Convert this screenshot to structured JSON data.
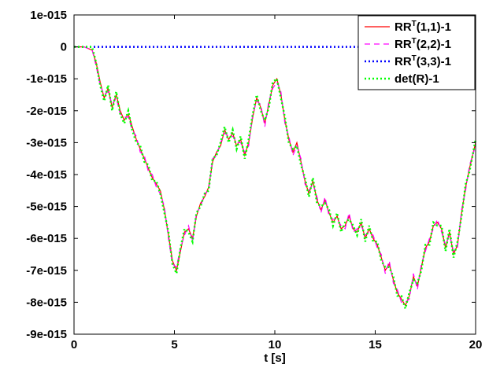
{
  "chart_data": {
    "type": "line",
    "title": "",
    "xlabel": "t [s]",
    "ylabel": "",
    "xlim": [
      0,
      20
    ],
    "ylim": [
      -9e-15,
      1e-15
    ],
    "x_ticks": [
      0,
      5,
      10,
      15,
      20
    ],
    "x_tick_labels": [
      "0",
      "5",
      "10",
      "15",
      "20"
    ],
    "y_ticks": [
      1e-15,
      0,
      -1e-15,
      -2e-15,
      -3e-15,
      -4e-15,
      -5e-15,
      -6e-15,
      -7e-15,
      -8e-15,
      -9e-15
    ],
    "y_tick_labels": [
      "1e-015",
      "0",
      "-1e-015",
      "-2e-015",
      "-3e-015",
      "-4e-015",
      "-5e-015",
      "-6e-015",
      "-7e-015",
      "-8e-015",
      "-9e-015"
    ],
    "grid": false,
    "legend_position": "top-right",
    "legend": [
      {
        "base": "RR",
        "sup": "T",
        "tail": "(1,1)-1",
        "color": "#ff0000",
        "style": "solid"
      },
      {
        "base": "RR",
        "sup": "T",
        "tail": "(2,2)-1",
        "color": "#ff00ff",
        "style": "dashed"
      },
      {
        "base": "RR",
        "sup": "T",
        "tail": "(3,3)-1",
        "color": "#0000ff",
        "style": "dotted"
      },
      {
        "base": "",
        "sup": "",
        "tail": "det(R)-1",
        "color": "#00ff00",
        "style": "dotted"
      }
    ],
    "series": [
      {
        "color": "#ff0000",
        "style": "solid",
        "x": [
          0,
          0.5,
          0.9,
          1.1,
          1.3,
          1.5,
          1.7,
          1.9,
          2.1,
          2.3,
          2.5,
          2.7,
          2.9,
          3.1,
          3.3,
          3.5,
          3.7,
          3.9,
          4.1,
          4.3,
          4.5,
          4.7,
          4.9,
          5.1,
          5.3,
          5.5,
          5.7,
          5.9,
          6.1,
          6.3,
          6.5,
          6.7,
          6.9,
          7.1,
          7.3,
          7.5,
          7.7,
          7.9,
          8.1,
          8.3,
          8.5,
          8.7,
          8.9,
          9.1,
          9.3,
          9.5,
          9.7,
          9.9,
          10.1,
          10.3,
          10.5,
          10.7,
          10.9,
          11.1,
          11.3,
          11.5,
          11.7,
          11.9,
          12.1,
          12.3,
          12.5,
          12.7,
          12.9,
          13.1,
          13.3,
          13.5,
          13.7,
          13.9,
          14.1,
          14.3,
          14.5,
          14.7,
          14.9,
          15.1,
          15.3,
          15.5,
          15.7,
          15.9,
          16.1,
          16.3,
          16.5,
          16.7,
          16.9,
          17.1,
          17.3,
          17.5,
          17.7,
          17.9,
          18.1,
          18.3,
          18.5,
          18.7,
          18.9,
          19.1,
          19.3,
          19.5,
          19.7,
          20
        ],
        "y": [
          0,
          0,
          -1e-16,
          -5e-16,
          -1.1e-15,
          -1.6e-15,
          -1.3e-15,
          -1.9e-15,
          -1.5e-15,
          -2e-15,
          -2.3e-15,
          -2.1e-15,
          -2.5e-15,
          -2.9e-15,
          -3.2e-15,
          -3.5e-15,
          -3.8e-15,
          -4.1e-15,
          -4.3e-15,
          -4.5e-15,
          -5.1e-15,
          -5.9e-15,
          -6.7e-15,
          -7e-15,
          -6.4e-15,
          -5.8e-15,
          -5.7e-15,
          -6e-15,
          -5.3e-15,
          -4.9e-15,
          -4.7e-15,
          -4.4e-15,
          -3.6e-15,
          -3.3e-15,
          -3.1e-15,
          -2.6e-15,
          -2.9e-15,
          -2.7e-15,
          -3.1e-15,
          -2.9e-15,
          -3.4e-15,
          -3e-15,
          -2.2e-15,
          -1.6e-15,
          -1.9e-15,
          -2.4e-15,
          -1.8e-15,
          -1.2e-15,
          -1e-15,
          -1.5e-15,
          -2.3e-15,
          -2.9e-15,
          -3.3e-15,
          -3e-15,
          -3.6e-15,
          -4.2e-15,
          -4.6e-15,
          -4.2e-15,
          -4.8e-15,
          -5.1e-15,
          -4.8e-15,
          -5.2e-15,
          -5.5e-15,
          -5.3e-15,
          -5.7e-15,
          -5.6e-15,
          -5.3e-15,
          -5.7e-15,
          -5.8e-15,
          -5.5e-15,
          -6e-15,
          -5.7e-15,
          -6e-15,
          -6.2e-15,
          -6.6e-15,
          -7e-15,
          -6.8e-15,
          -7.3e-15,
          -7.7e-15,
          -7.9e-15,
          -8.1e-15,
          -7.8e-15,
          -7.2e-15,
          -7.5e-15,
          -6.9e-15,
          -6.3e-15,
          -6.1e-15,
          -5.6e-15,
          -5.5e-15,
          -5.7e-15,
          -6.3e-15,
          -5.8e-15,
          -6.5e-15,
          -6.2e-15,
          -5.2e-15,
          -4.4e-15,
          -3.8e-15,
          -3e-15
        ]
      },
      {
        "color": "#ff00ff",
        "style": "dashed",
        "x": [
          0,
          0.5,
          0.9,
          1.1,
          1.3,
          1.5,
          1.7,
          1.9,
          2.1,
          2.3,
          2.5,
          2.7,
          2.9,
          3.1,
          3.3,
          3.5,
          3.7,
          3.9,
          4.1,
          4.3,
          4.5,
          4.7,
          4.9,
          5.1,
          5.3,
          5.5,
          5.7,
          5.9,
          6.1,
          6.3,
          6.5,
          6.7,
          6.9,
          7.1,
          7.3,
          7.5,
          7.7,
          7.9,
          8.1,
          8.3,
          8.5,
          8.7,
          8.9,
          9.1,
          9.3,
          9.5,
          9.7,
          9.9,
          10.1,
          10.3,
          10.5,
          10.7,
          10.9,
          11.1,
          11.3,
          11.5,
          11.7,
          11.9,
          12.1,
          12.3,
          12.5,
          12.7,
          12.9,
          13.1,
          13.3,
          13.5,
          13.7,
          13.9,
          14.1,
          14.3,
          14.5,
          14.7,
          14.9,
          15.1,
          15.3,
          15.5,
          15.7,
          15.9,
          16.1,
          16.3,
          16.5,
          16.7,
          16.9,
          17.1,
          17.3,
          17.5,
          17.7,
          17.9,
          18.1,
          18.3,
          18.5,
          18.7,
          18.9,
          19.1,
          19.3,
          19.5,
          19.7,
          20
        ],
        "y": [
          0,
          0,
          -1e-16,
          -6e-16,
          -1.2e-15,
          -1.5e-15,
          -1.4e-15,
          -1.8e-15,
          -1.6e-15,
          -2.1e-15,
          -2.2e-15,
          -2.2e-15,
          -2.6e-15,
          -2.8e-15,
          -3.3e-15,
          -3.4e-15,
          -3.9e-15,
          -4e-15,
          -4.4e-15,
          -4.6e-15,
          -5e-15,
          -6e-15,
          -6.8e-15,
          -6.9e-15,
          -6.3e-15,
          -5.9e-15,
          -5.6e-15,
          -6.1e-15,
          -5.2e-15,
          -5e-15,
          -4.6e-15,
          -4.5e-15,
          -3.5e-15,
          -3.4e-15,
          -3e-15,
          -2.7e-15,
          -2.8e-15,
          -2.8e-15,
          -3e-15,
          -3e-15,
          -3.3e-15,
          -3.1e-15,
          -2.1e-15,
          -1.7e-15,
          -1.8e-15,
          -2.5e-15,
          -1.7e-15,
          -1.3e-15,
          -1.1e-15,
          -1.4e-15,
          -2.4e-15,
          -2.8e-15,
          -3.4e-15,
          -3.1e-15,
          -3.5e-15,
          -4.3e-15,
          -4.5e-15,
          -4.3e-15,
          -4.7e-15,
          -5.2e-15,
          -4.7e-15,
          -5.3e-15,
          -5.4e-15,
          -5.4e-15,
          -5.6e-15,
          -5.7e-15,
          -5.2e-15,
          -5.8e-15,
          -5.7e-15,
          -5.6e-15,
          -5.9e-15,
          -5.8e-15,
          -5.9e-15,
          -6.3e-15,
          -6.5e-15,
          -7.1e-15,
          -6.7e-15,
          -7.4e-15,
          -7.6e-15,
          -8e-15,
          -8e-15,
          -7.9e-15,
          -7.1e-15,
          -7.6e-15,
          -6.8e-15,
          -6.4e-15,
          -6e-15,
          -5.7e-15,
          -5.4e-15,
          -5.8e-15,
          -6.2e-15,
          -5.9e-15,
          -6.4e-15,
          -6.3e-15,
          -5.1e-15,
          -4.5e-15,
          -3.7e-15,
          -3.1e-15
        ]
      },
      {
        "color": "#0000ff",
        "style": "dotted",
        "x": [
          0,
          20
        ],
        "y": [
          0,
          0
        ]
      },
      {
        "color": "#00ff00",
        "style": "dotted",
        "x": [
          0,
          0.5,
          0.9,
          1.1,
          1.3,
          1.5,
          1.7,
          1.9,
          2.1,
          2.3,
          2.5,
          2.7,
          2.9,
          3.1,
          3.3,
          3.5,
          3.7,
          3.9,
          4.1,
          4.3,
          4.5,
          4.7,
          4.9,
          5.1,
          5.3,
          5.5,
          5.7,
          5.9,
          6.1,
          6.3,
          6.5,
          6.7,
          6.9,
          7.1,
          7.3,
          7.5,
          7.7,
          7.9,
          8.1,
          8.3,
          8.5,
          8.7,
          8.9,
          9.1,
          9.3,
          9.5,
          9.7,
          9.9,
          10.1,
          10.3,
          10.5,
          10.7,
          10.9,
          11.1,
          11.3,
          11.5,
          11.7,
          11.9,
          12.1,
          12.3,
          12.5,
          12.7,
          12.9,
          13.1,
          13.3,
          13.5,
          13.7,
          13.9,
          14.1,
          14.3,
          14.5,
          14.7,
          14.9,
          15.1,
          15.3,
          15.5,
          15.7,
          15.9,
          16.1,
          16.3,
          16.5,
          16.7,
          16.9,
          17.1,
          17.3,
          17.5,
          17.7,
          17.9,
          18.1,
          18.3,
          18.5,
          18.7,
          18.9,
          19.1,
          19.3,
          19.5,
          19.7,
          20
        ],
        "y": [
          0,
          0,
          0,
          -5e-16,
          -1.2e-15,
          -1.7e-15,
          -1.2e-15,
          -2e-15,
          -1.4e-15,
          -2.1e-15,
          -2.4e-15,
          -2e-15,
          -2.6e-15,
          -3e-15,
          -3.1e-15,
          -3.6e-15,
          -3.7e-15,
          -4.2e-15,
          -4.2e-15,
          -4.6e-15,
          -5.2e-15,
          -5.8e-15,
          -6.8e-15,
          -7.1e-15,
          -6.3e-15,
          -5.7e-15,
          -5.8e-15,
          -6.1e-15,
          -5.2e-15,
          -5e-15,
          -4.6e-15,
          -4.5e-15,
          -3.5e-15,
          -3.4e-15,
          -3e-15,
          -2.5e-15,
          -3e-15,
          -2.6e-15,
          -3.2e-15,
          -2.8e-15,
          -3.5e-15,
          -2.9e-15,
          -2.1e-15,
          -1.5e-15,
          -2e-15,
          -2.3e-15,
          -1.9e-15,
          -1.1e-15,
          -1e-15,
          -1.6e-15,
          -2.2e-15,
          -3e-15,
          -3.2e-15,
          -3.1e-15,
          -3.7e-15,
          -4.1e-15,
          -4.7e-15,
          -4.1e-15,
          -4.9e-15,
          -5e-15,
          -4.9e-15,
          -5.1e-15,
          -5.6e-15,
          -5.2e-15,
          -5.8e-15,
          -5.5e-15,
          -5.4e-15,
          -5.6e-15,
          -5.9e-15,
          -5.4e-15,
          -6.1e-15,
          -5.6e-15,
          -6.1e-15,
          -6.1e-15,
          -6.7e-15,
          -6.9e-15,
          -6.9e-15,
          -7.2e-15,
          -7.8e-15,
          -7.8e-15,
          -8.2e-15,
          -7.7e-15,
          -7.3e-15,
          -7.4e-15,
          -7e-15,
          -6.2e-15,
          -6.2e-15,
          -5.5e-15,
          -5.6e-15,
          -5.6e-15,
          -6.4e-15,
          -5.7e-15,
          -6.6e-15,
          -6.1e-15,
          -5.3e-15,
          -4.3e-15,
          -3.9e-15,
          -2.9e-15
        ]
      }
    ]
  }
}
